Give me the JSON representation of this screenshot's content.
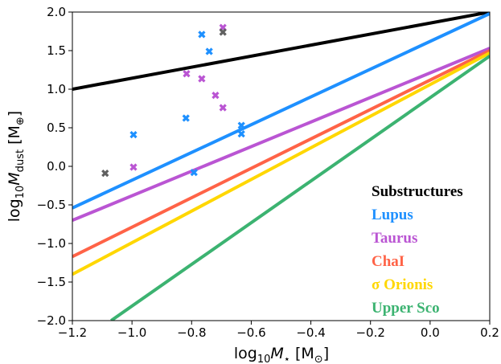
{
  "chart_data": {
    "type": "line",
    "xlabel": [
      "log",
      "10",
      "M",
      "⋆",
      " [M",
      "⊙",
      "]"
    ],
    "ylabel": [
      "log",
      "10",
      "M",
      "dust",
      " [M",
      "⊕",
      "]"
    ],
    "xlim": [
      -1.2,
      0.2
    ],
    "ylim": [
      -2.0,
      2.0
    ],
    "xticks": [
      {
        "value": -1.2,
        "label": "−1.2"
      },
      {
        "value": -1.0,
        "label": "−1.0"
      },
      {
        "value": -0.8,
        "label": "−0.8"
      },
      {
        "value": -0.6,
        "label": "−0.6"
      },
      {
        "value": -0.4,
        "label": "−0.4"
      },
      {
        "value": -0.2,
        "label": "−0.2"
      },
      {
        "value": 0,
        "label": "0.0"
      },
      {
        "value": 0.2,
        "label": "0.2"
      }
    ],
    "yticks": [
      {
        "value": -2,
        "label": "−2.0"
      },
      {
        "value": -1.5,
        "label": "−1.5"
      },
      {
        "value": -1,
        "label": "−1.0"
      },
      {
        "value": -0.5,
        "label": "−0.5"
      },
      {
        "value": 0,
        "label": "0.0"
      },
      {
        "value": 0.5,
        "label": "0.5"
      },
      {
        "value": 1,
        "label": "1.0"
      },
      {
        "value": 1.5,
        "label": "1.5"
      },
      {
        "value": 2,
        "label": "2.0"
      }
    ],
    "legend": "lower right",
    "series": [
      {
        "type": "line",
        "name": "Substructures",
        "color": "#000000",
        "x": [
          -1.2,
          0.2
        ],
        "values": [
          1.0,
          2.0
        ]
      },
      {
        "type": "line",
        "name": "Lupus",
        "color": "#1e90ff",
        "x": [
          -1.2,
          0.2
        ],
        "values": [
          -0.54,
          1.98
        ]
      },
      {
        "type": "line",
        "name": "Taurus",
        "color": "#ba55d3",
        "x": [
          -1.2,
          0.2
        ],
        "values": [
          -0.7,
          1.53
        ]
      },
      {
        "type": "line",
        "name": "ChaI",
        "color": "#ff6347",
        "x": [
          -1.2,
          0.2
        ],
        "values": [
          -1.17,
          1.5
        ]
      },
      {
        "type": "line",
        "name": "σ Orionis",
        "color": "#ffd700",
        "x": [
          -1.2,
          0.2
        ],
        "values": [
          -1.4,
          1.47
        ]
      },
      {
        "type": "line",
        "name": "Upper Sco",
        "color": "#3cb371",
        "x": [
          -1.07,
          0.2
        ],
        "values": [
          -2.0,
          1.43
        ]
      },
      {
        "type": "scatter",
        "color": "#1e90ff",
        "x": [
          -0.766,
          -0.741,
          -0.995,
          -0.819,
          -0.633,
          -0.633,
          -0.792
        ],
        "values": [
          1.71,
          1.49,
          0.41,
          0.625,
          0.53,
          0.42,
          -0.08
        ]
      },
      {
        "type": "scatter",
        "color": "#ba55d3",
        "x": [
          -0.695,
          -0.817,
          -0.766,
          -0.72,
          -0.695,
          -0.995
        ],
        "values": [
          1.8,
          1.2,
          1.135,
          0.92,
          0.76,
          -0.01
        ]
      },
      {
        "type": "scatter",
        "color": "#606060",
        "x": [
          -1.09,
          -0.695
        ],
        "values": [
          -0.09,
          1.74
        ]
      }
    ]
  }
}
